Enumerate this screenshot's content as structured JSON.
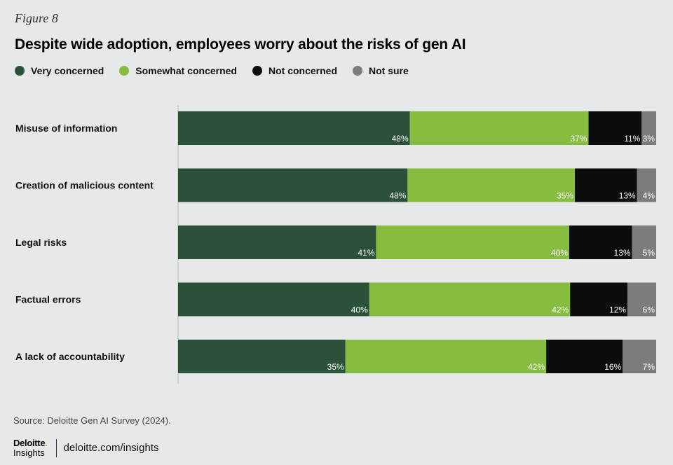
{
  "figure_label": "Figure 8",
  "chart_data": {
    "type": "bar",
    "orientation": "horizontal",
    "stacked": true,
    "title": "Despite wide adoption, employees worry about the risks of gen AI",
    "categories": [
      "Misuse of information",
      "Creation of malicious content",
      "Legal risks",
      "Factual errors",
      "A lack of accountability"
    ],
    "series": [
      {
        "name": "Very concerned",
        "color": "#2b5238",
        "values": [
          48,
          48,
          41,
          40,
          35
        ]
      },
      {
        "name": "Somewhat concerned",
        "color": "#86bc40",
        "values": [
          37,
          35,
          40,
          42,
          42
        ]
      },
      {
        "name": "Not concerned",
        "color": "#0c0c0c",
        "values": [
          11,
          13,
          13,
          12,
          16
        ]
      },
      {
        "name": "Not sure",
        "color": "#7b7c7e",
        "values": [
          3,
          4,
          5,
          6,
          7
        ]
      }
    ],
    "value_suffix": "%",
    "legend_position": "top-left",
    "grid": false
  },
  "source": "Source: Deloitte Gen AI Survey (2024).",
  "footer": {
    "logo_word": "Deloitte",
    "logo_dot": ".",
    "logo_sub": "Insights",
    "url": "deloitte.com/insights"
  }
}
